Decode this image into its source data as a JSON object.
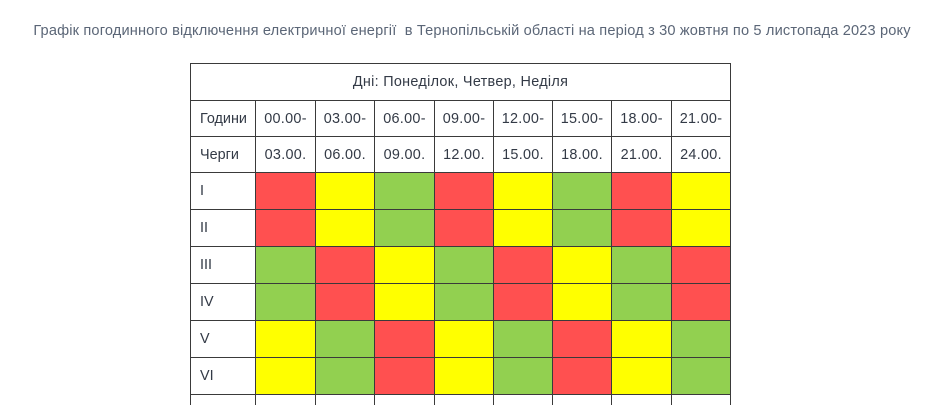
{
  "title": "Графік погодинного відключення електричної енергії  в Тернопільській області на період з 30 жовтня по 5 листопада 2023 року",
  "table": {
    "days_header": "Дні: Понеділок, Четвер, Неділя",
    "hours_label": "Години",
    "queues_label": "Черги",
    "time_start": [
      "00.00-",
      "03.00-",
      "06.00-",
      "09.00-",
      "12.00-",
      "15.00-",
      "18.00-",
      "21.00-"
    ],
    "time_end": [
      "03.00.",
      "06.00.",
      "09.00.",
      "12.00.",
      "15.00.",
      "18.00.",
      "21.00.",
      "24.00."
    ],
    "colors": {
      "red": "#ff5050",
      "yellow": "#ffff00",
      "green": "#92d050"
    },
    "rows": [
      {
        "queue": "I",
        "slots": [
          "red",
          "yellow",
          "green",
          "red",
          "yellow",
          "green",
          "red",
          "yellow"
        ]
      },
      {
        "queue": "II",
        "slots": [
          "red",
          "yellow",
          "green",
          "red",
          "yellow",
          "green",
          "red",
          "yellow"
        ]
      },
      {
        "queue": "III",
        "slots": [
          "green",
          "red",
          "yellow",
          "green",
          "red",
          "yellow",
          "green",
          "red"
        ]
      },
      {
        "queue": "IV",
        "slots": [
          "green",
          "red",
          "yellow",
          "green",
          "red",
          "yellow",
          "green",
          "red"
        ]
      },
      {
        "queue": "V",
        "slots": [
          "yellow",
          "green",
          "red",
          "yellow",
          "green",
          "red",
          "yellow",
          "green"
        ]
      },
      {
        "queue": "VI",
        "slots": [
          "yellow",
          "green",
          "red",
          "yellow",
          "green",
          "red",
          "yellow",
          "green"
        ]
      }
    ]
  }
}
